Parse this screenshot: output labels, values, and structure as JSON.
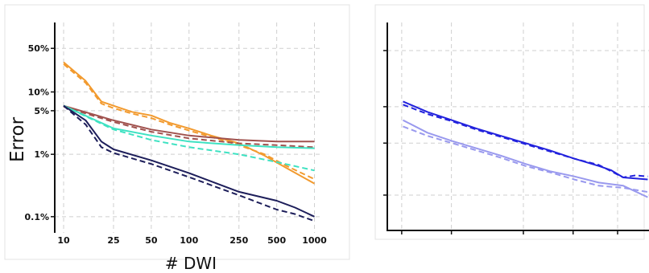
{
  "chart_data": [
    {
      "type": "line",
      "title": "",
      "xlabel": "# DWI",
      "ylabel": "Error",
      "xscale": "log",
      "yscale": "log",
      "xlim": [
        8.5,
        1150
      ],
      "ylim": [
        0.055,
        130
      ],
      "x_ticks": [
        10,
        25,
        50,
        100,
        250,
        500,
        1000
      ],
      "x_tick_labels": [
        "10",
        "25",
        "50",
        "100",
        "250",
        "500",
        "1000"
      ],
      "y_ticks": [
        0.1,
        1,
        5,
        10,
        50
      ],
      "y_tick_labels": [
        "0.1%",
        "1%",
        "5%",
        "10%",
        "50%"
      ],
      "grid": true,
      "series": [
        {
          "color": "#F29A2E",
          "style": "solid",
          "x": [
            10,
            15,
            20,
            25,
            35,
            50,
            70,
            100,
            150,
            250,
            400,
            600,
            1000
          ],
          "y": [
            30,
            15,
            7,
            6,
            4.8,
            4.2,
            3.2,
            2.6,
            2.0,
            1.5,
            0.95,
            0.6,
            0.34
          ]
        },
        {
          "color": "#F29A2E",
          "style": "dashed",
          "x": [
            10,
            15,
            20,
            25,
            35,
            50,
            70,
            100,
            150,
            250,
            400,
            600,
            1000
          ],
          "y": [
            28,
            14,
            6.5,
            5.5,
            4.5,
            3.8,
            3.0,
            2.4,
            1.9,
            1.4,
            1.0,
            0.65,
            0.4
          ]
        },
        {
          "color": "#A0524E",
          "style": "solid",
          "x": [
            10,
            25,
            50,
            100,
            250,
            500,
            1000
          ],
          "y": [
            6,
            3.5,
            2.5,
            2.0,
            1.7,
            1.6,
            1.6
          ]
        },
        {
          "color": "#A0524E",
          "style": "dashed",
          "x": [
            10,
            25,
            50,
            100,
            250,
            500,
            1000
          ],
          "y": [
            5.8,
            3.3,
            2.3,
            1.8,
            1.5,
            1.4,
            1.3
          ]
        },
        {
          "color": "#3EE2C2",
          "style": "solid",
          "x": [
            10,
            25,
            50,
            100,
            250,
            500,
            1000
          ],
          "y": [
            6,
            2.6,
            2.0,
            1.6,
            1.4,
            1.3,
            1.25
          ]
        },
        {
          "color": "#3EE2C2",
          "style": "dashed",
          "x": [
            10,
            25,
            50,
            100,
            250,
            500,
            1000
          ],
          "y": [
            6,
            2.5,
            1.7,
            1.3,
            1.0,
            0.75,
            0.55
          ]
        },
        {
          "color": "#1D1E5A",
          "style": "solid",
          "x": [
            10,
            15,
            20,
            25,
            50,
            100,
            250,
            500,
            700,
            1000
          ],
          "y": [
            6,
            3.5,
            1.6,
            1.2,
            0.8,
            0.5,
            0.25,
            0.18,
            0.14,
            0.1
          ]
        },
        {
          "color": "#1D1E5A",
          "style": "dashed",
          "x": [
            10,
            15,
            20,
            25,
            50,
            100,
            250,
            500,
            700,
            1000
          ],
          "y": [
            6,
            3.0,
            1.3,
            1.05,
            0.7,
            0.43,
            0.22,
            0.13,
            0.11,
            0.085
          ]
        }
      ]
    },
    {
      "type": "line",
      "title": "",
      "xlabel": "",
      "ylabel": "",
      "xlim": [
        0,
        1
      ],
      "ylim": [
        0,
        1
      ],
      "grid": true,
      "series": [
        {
          "color": "#2222DD",
          "style": "solid",
          "x": [
            0.0,
            0.1,
            0.2,
            0.3,
            0.4,
            0.5,
            0.6,
            0.7,
            0.8,
            0.85,
            0.9,
            0.95,
            1.0
          ],
          "y": [
            0.62,
            0.57,
            0.53,
            0.49,
            0.455,
            0.42,
            0.385,
            0.345,
            0.31,
            0.29,
            0.255,
            0.25,
            0.245
          ]
        },
        {
          "color": "#2222DD",
          "style": "dashed",
          "x": [
            0.0,
            0.1,
            0.2,
            0.3,
            0.4,
            0.5,
            0.6,
            0.7,
            0.8,
            0.85,
            0.9,
            0.95,
            1.0
          ],
          "y": [
            0.605,
            0.56,
            0.525,
            0.485,
            0.45,
            0.415,
            0.38,
            0.345,
            0.315,
            0.285,
            0.255,
            0.265,
            0.26
          ]
        },
        {
          "color": "#9999EE",
          "style": "solid",
          "x": [
            0.0,
            0.1,
            0.2,
            0.3,
            0.4,
            0.5,
            0.6,
            0.7,
            0.8,
            0.9,
            1.0
          ],
          "y": [
            0.53,
            0.47,
            0.43,
            0.395,
            0.36,
            0.32,
            0.285,
            0.26,
            0.23,
            0.215,
            0.16
          ]
        },
        {
          "color": "#9999EE",
          "style": "dashed",
          "x": [
            0.0,
            0.1,
            0.2,
            0.3,
            0.4,
            0.5,
            0.6,
            0.7,
            0.8,
            0.9,
            1.0
          ],
          "y": [
            0.5,
            0.455,
            0.42,
            0.385,
            0.35,
            0.31,
            0.28,
            0.245,
            0.215,
            0.205,
            0.185
          ]
        }
      ]
    }
  ]
}
